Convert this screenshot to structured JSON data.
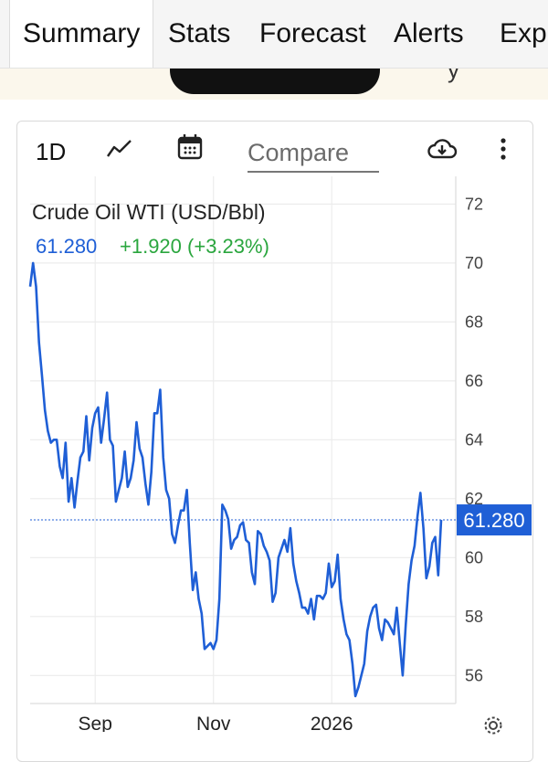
{
  "tabs": [
    "Summary",
    "Stats",
    "Forecast",
    "Alerts",
    "Exp"
  ],
  "banner": {
    "text": "‘ y ‘"
  },
  "toolbar": {
    "range": "1D",
    "compare_placeholder": "Compare"
  },
  "colors": {
    "line": "#1f5fd6",
    "positive": "#2aa63e",
    "grid": "#ececec",
    "tag_bg": "#1f5fd6"
  },
  "chart_data": {
    "type": "line",
    "title": "Crude Oil WTI (USD/Bbl)",
    "last_price": "61.280",
    "change_text": "+1.920 (+3.23%)",
    "ylim": [
      54.8,
      73.5
    ],
    "yticks": [
      56,
      58,
      60,
      62,
      64,
      66,
      68,
      70,
      72
    ],
    "xtick_labels": [
      "Sep",
      "Nov",
      "2026"
    ],
    "xtick_index": [
      22,
      62,
      102
    ],
    "grid": true,
    "series": [
      {
        "values": [
          69.2,
          70.0,
          69.2,
          67.3,
          66.2,
          65.0,
          64.3,
          63.9,
          64.0,
          64.0,
          63.1,
          62.7,
          63.9,
          61.9,
          62.7,
          61.7,
          62.6,
          63.4,
          63.6,
          64.8,
          63.3,
          64.4,
          64.9,
          65.1,
          63.9,
          64.7,
          65.6,
          64.0,
          63.8,
          61.9,
          62.3,
          62.7,
          63.6,
          62.4,
          62.7,
          63.3,
          64.6,
          63.7,
          63.4,
          62.5,
          61.8,
          62.9,
          64.9,
          64.9,
          65.7,
          63.4,
          62.3,
          62.0,
          60.8,
          60.5,
          61.1,
          61.6,
          61.6,
          62.3,
          60.5,
          58.9,
          59.5,
          58.6,
          58.1,
          56.9,
          57.0,
          57.1,
          56.9,
          57.2,
          58.6,
          61.8,
          61.6,
          61.3,
          60.3,
          60.6,
          60.7,
          61.1,
          61.2,
          60.6,
          60.5,
          59.5,
          59.1,
          60.9,
          60.8,
          60.4,
          60.2,
          59.9,
          58.5,
          58.8,
          60.0,
          60.3,
          60.6,
          60.2,
          61.0,
          59.8,
          59.2,
          58.8,
          58.3,
          58.3,
          58.1,
          58.6,
          57.9,
          58.7,
          58.7,
          58.6,
          58.8,
          59.8,
          59.0,
          59.2,
          60.1,
          58.6,
          57.9,
          57.4,
          57.2,
          56.4,
          55.3,
          55.6,
          56.0,
          56.4,
          57.5,
          58.0,
          58.3,
          58.4,
          57.6,
          57.2,
          57.9,
          57.8,
          57.6,
          57.4,
          58.3,
          57.1,
          56.0,
          57.7,
          59.1,
          59.9,
          60.4,
          61.4,
          62.2,
          61.0,
          59.3,
          59.7,
          60.5,
          60.7,
          59.4,
          61.28
        ]
      }
    ]
  }
}
